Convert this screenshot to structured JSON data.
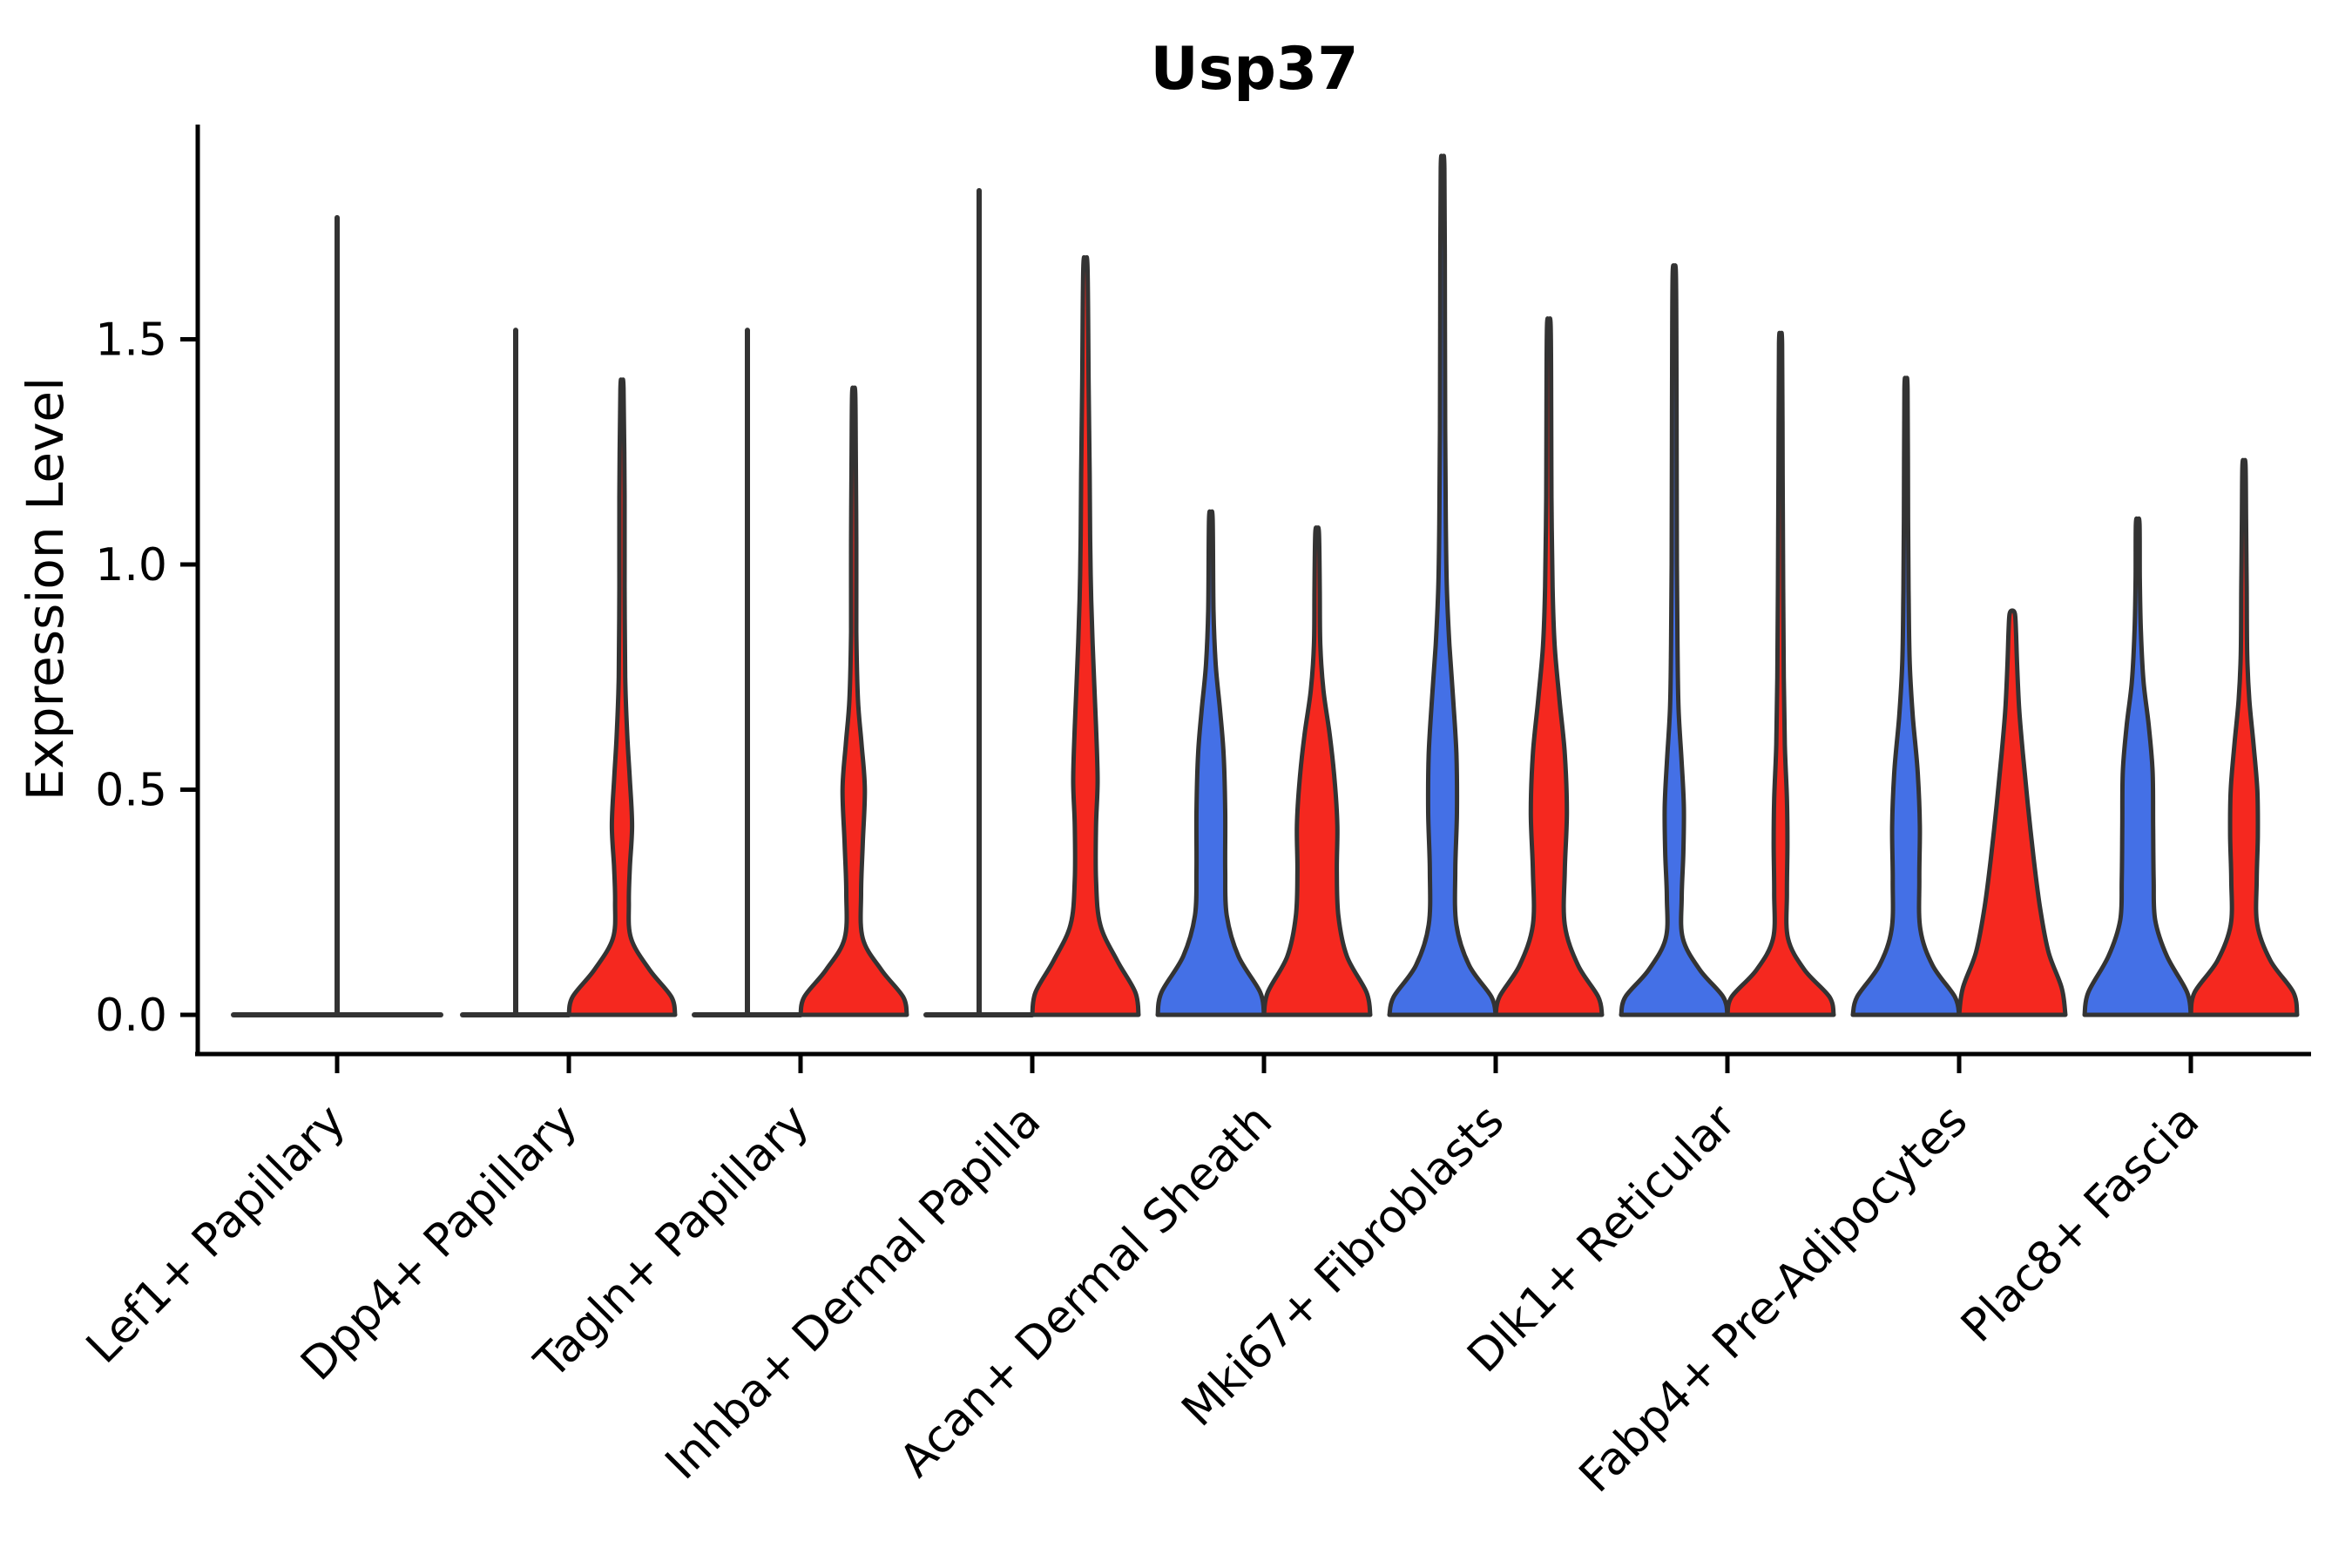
{
  "chart_data": {
    "type": "violin",
    "title": "Usp37",
    "ylabel": "Expression Level",
    "xlabel": "",
    "legend": "none",
    "grid": false,
    "yticks": [
      0.0,
      0.5,
      1.0,
      1.5
    ],
    "ytick_labels": [
      "0.0",
      "0.5",
      "1.0",
      "1.5"
    ],
    "ylim": [
      -0.08,
      1.98
    ],
    "colors": {
      "split1_fill": "#4470e6",
      "split2_fill": "#f5281f",
      "violin_outline": "#333333",
      "axis": "#000000",
      "background": "#ffffff"
    },
    "categories": [
      "Lef1+ Papillary",
      "Dpp4+ Papillary",
      "Tagln+ Papillary",
      "Inhba+ Dermal Papilla",
      "Acan+ Dermal Sheath",
      "Mki67+ Fibroblasts",
      "Dlk1+ Reticular",
      "Fabp4+ Pre-Adipocytes",
      "Plac8+ Fascia"
    ],
    "groups": [
      {
        "category": "Lef1+ Papillary",
        "violins": [
          {
            "split": "single",
            "type": "flat",
            "max": 1.77,
            "offset": 0,
            "halfwidth": 119
          }
        ]
      },
      {
        "category": "Dpp4+ Papillary",
        "violins": [
          {
            "split": "split1",
            "type": "flat",
            "max": 1.52,
            "offset": -61,
            "halfwidth": 61
          },
          {
            "split": "split2",
            "type": "density",
            "max": 1.39,
            "offset": 61,
            "halfwidth": 61,
            "profile": [
              [
                0,
                1
              ],
              [
                0.04,
                0.93
              ],
              [
                0.1,
                0.52
              ],
              [
                0.17,
                0.17
              ],
              [
                0.25,
                0.13
              ],
              [
                0.33,
                0.15
              ],
              [
                0.42,
                0.19
              ],
              [
                0.52,
                0.15
              ],
              [
                0.62,
                0.1
              ],
              [
                0.75,
                0.06
              ],
              [
                0.95,
                0.05
              ],
              [
                1.15,
                0.05
              ],
              [
                1.39,
                0.03
              ]
            ]
          }
        ]
      },
      {
        "category": "Tagln+ Papillary",
        "violins": [
          {
            "split": "split1",
            "type": "flat",
            "max": 1.52,
            "offset": -61,
            "halfwidth": 61
          },
          {
            "split": "split2",
            "type": "density",
            "max": 1.38,
            "offset": 61,
            "halfwidth": 61,
            "profile": [
              [
                0,
                1
              ],
              [
                0.04,
                0.93
              ],
              [
                0.1,
                0.52
              ],
              [
                0.17,
                0.17
              ],
              [
                0.27,
                0.14
              ],
              [
                0.38,
                0.17
              ],
              [
                0.5,
                0.21
              ],
              [
                0.6,
                0.15
              ],
              [
                0.7,
                0.08
              ],
              [
                0.85,
                0.05
              ],
              [
                1.05,
                0.05
              ],
              [
                1.25,
                0.04
              ],
              [
                1.38,
                0.03
              ]
            ]
          }
        ]
      },
      {
        "category": "Inhba+ Dermal Papilla",
        "violins": [
          {
            "split": "split1",
            "type": "flat",
            "max": 1.83,
            "offset": -61,
            "halfwidth": 61
          },
          {
            "split": "split2",
            "type": "density",
            "max": 1.66,
            "offset": 61,
            "halfwidth": 61,
            "profile": [
              [
                0,
                1
              ],
              [
                0.05,
                0.94
              ],
              [
                0.12,
                0.6
              ],
              [
                0.2,
                0.28
              ],
              [
                0.3,
                0.2
              ],
              [
                0.42,
                0.2
              ],
              [
                0.52,
                0.23
              ],
              [
                0.64,
                0.2
              ],
              [
                0.78,
                0.15
              ],
              [
                0.92,
                0.11
              ],
              [
                1.05,
                0.09
              ],
              [
                1.2,
                0.08
              ],
              [
                1.4,
                0.06
              ],
              [
                1.66,
                0.04
              ]
            ]
          }
        ]
      },
      {
        "category": "Acan+ Dermal Sheath",
        "violins": [
          {
            "split": "split1",
            "type": "density",
            "max": 1.1,
            "offset": -61,
            "halfwidth": 61,
            "profile": [
              [
                0,
                1
              ],
              [
                0.05,
                0.93
              ],
              [
                0.13,
                0.52
              ],
              [
                0.22,
                0.3
              ],
              [
                0.32,
                0.27
              ],
              [
                0.45,
                0.27
              ],
              [
                0.58,
                0.24
              ],
              [
                0.68,
                0.17
              ],
              [
                0.78,
                0.09
              ],
              [
                0.9,
                0.05
              ],
              [
                1.1,
                0.035
              ]
            ]
          },
          {
            "split": "split2",
            "type": "density",
            "max": 1.07,
            "offset": 61,
            "halfwidth": 61,
            "profile": [
              [
                0,
                1
              ],
              [
                0.05,
                0.93
              ],
              [
                0.13,
                0.56
              ],
              [
                0.22,
                0.4
              ],
              [
                0.32,
                0.37
              ],
              [
                0.42,
                0.38
              ],
              [
                0.52,
                0.33
              ],
              [
                0.62,
                0.24
              ],
              [
                0.72,
                0.12
              ],
              [
                0.82,
                0.06
              ],
              [
                0.95,
                0.05
              ],
              [
                1.07,
                0.035
              ]
            ]
          }
        ]
      },
      {
        "category": "Mki67+ Fibroblasts",
        "violins": [
          {
            "split": "split1",
            "type": "density",
            "max": 1.88,
            "offset": -61,
            "halfwidth": 61,
            "profile": [
              [
                0,
                1
              ],
              [
                0.04,
                0.92
              ],
              [
                0.11,
                0.5
              ],
              [
                0.2,
                0.26
              ],
              [
                0.32,
                0.24
              ],
              [
                0.45,
                0.27
              ],
              [
                0.58,
                0.26
              ],
              [
                0.7,
                0.2
              ],
              [
                0.82,
                0.13
              ],
              [
                0.95,
                0.08
              ],
              [
                1.1,
                0.06
              ],
              [
                1.3,
                0.05
              ],
              [
                1.55,
                0.045
              ],
              [
                1.88,
                0.035
              ]
            ]
          },
          {
            "split": "split2",
            "type": "density",
            "max": 1.53,
            "offset": 61,
            "halfwidth": 61,
            "profile": [
              [
                0,
                1
              ],
              [
                0.04,
                0.93
              ],
              [
                0.11,
                0.55
              ],
              [
                0.2,
                0.3
              ],
              [
                0.32,
                0.3
              ],
              [
                0.45,
                0.34
              ],
              [
                0.58,
                0.3
              ],
              [
                0.7,
                0.2
              ],
              [
                0.82,
                0.11
              ],
              [
                0.95,
                0.07
              ],
              [
                1.15,
                0.05
              ],
              [
                1.35,
                0.045
              ],
              [
                1.53,
                0.035
              ]
            ]
          }
        ]
      },
      {
        "category": "Dlk1+ Reticular",
        "violins": [
          {
            "split": "split1",
            "type": "density",
            "max": 1.65,
            "offset": -61,
            "halfwidth": 61,
            "profile": [
              [
                0,
                1
              ],
              [
                0.04,
                0.92
              ],
              [
                0.1,
                0.48
              ],
              [
                0.17,
                0.16
              ],
              [
                0.26,
                0.14
              ],
              [
                0.36,
                0.17
              ],
              [
                0.46,
                0.18
              ],
              [
                0.56,
                0.14
              ],
              [
                0.68,
                0.08
              ],
              [
                0.82,
                0.06
              ],
              [
                1,
                0.05
              ],
              [
                1.25,
                0.045
              ],
              [
                1.5,
                0.04
              ],
              [
                1.65,
                0.03
              ]
            ]
          },
          {
            "split": "split2",
            "type": "density",
            "max": 1.49,
            "offset": 61,
            "halfwidth": 61,
            "profile": [
              [
                0,
                1
              ],
              [
                0.04,
                0.92
              ],
              [
                0.1,
                0.45
              ],
              [
                0.17,
                0.14
              ],
              [
                0.27,
                0.12
              ],
              [
                0.38,
                0.13
              ],
              [
                0.48,
                0.12
              ],
              [
                0.6,
                0.08
              ],
              [
                0.75,
                0.06
              ],
              [
                0.95,
                0.05
              ],
              [
                1.2,
                0.04
              ],
              [
                1.49,
                0.03
              ]
            ]
          }
        ]
      },
      {
        "category": "Fabp4+ Pre-Adipocytes",
        "violins": [
          {
            "split": "split1",
            "type": "density",
            "max": 1.39,
            "offset": -61,
            "halfwidth": 61,
            "profile": [
              [
                0,
                1
              ],
              [
                0.04,
                0.92
              ],
              [
                0.11,
                0.5
              ],
              [
                0.19,
                0.27
              ],
              [
                0.3,
                0.25
              ],
              [
                0.42,
                0.26
              ],
              [
                0.54,
                0.22
              ],
              [
                0.66,
                0.13
              ],
              [
                0.78,
                0.07
              ],
              [
                0.92,
                0.05
              ],
              [
                1.1,
                0.04
              ],
              [
                1.39,
                0.03
              ]
            ]
          },
          {
            "split": "split2",
            "type": "density",
            "max": 0.89,
            "offset": 61,
            "halfwidth": 61,
            "profile": [
              [
                0,
                1
              ],
              [
                0.06,
                0.93
              ],
              [
                0.14,
                0.68
              ],
              [
                0.24,
                0.52
              ],
              [
                0.35,
                0.4
              ],
              [
                0.47,
                0.29
              ],
              [
                0.58,
                0.2
              ],
              [
                0.68,
                0.13
              ],
              [
                0.78,
                0.09
              ],
              [
                0.85,
                0.07
              ],
              [
                0.89,
                0.05
              ]
            ]
          }
        ]
      },
      {
        "category": "Plac8+ Fascia",
        "violins": [
          {
            "split": "split1",
            "type": "density",
            "max": 1.09,
            "offset": -61,
            "halfwidth": 61,
            "profile": [
              [
                0,
                1
              ],
              [
                0.05,
                0.93
              ],
              [
                0.13,
                0.55
              ],
              [
                0.21,
                0.33
              ],
              [
                0.3,
                0.3
              ],
              [
                0.42,
                0.29
              ],
              [
                0.54,
                0.28
              ],
              [
                0.64,
                0.21
              ],
              [
                0.74,
                0.11
              ],
              [
                0.85,
                0.06
              ],
              [
                0.97,
                0.04
              ],
              [
                1.09,
                0.035
              ]
            ]
          },
          {
            "split": "split2",
            "type": "density",
            "max": 1.22,
            "offset": 61,
            "halfwidth": 61,
            "profile": [
              [
                0,
                1
              ],
              [
                0.05,
                0.93
              ],
              [
                0.12,
                0.5
              ],
              [
                0.2,
                0.25
              ],
              [
                0.3,
                0.24
              ],
              [
                0.4,
                0.26
              ],
              [
                0.5,
                0.25
              ],
              [
                0.6,
                0.18
              ],
              [
                0.7,
                0.1
              ],
              [
                0.8,
                0.06
              ],
              [
                0.95,
                0.05
              ],
              [
                1.1,
                0.04
              ],
              [
                1.22,
                0.03
              ]
            ]
          }
        ]
      }
    ]
  }
}
